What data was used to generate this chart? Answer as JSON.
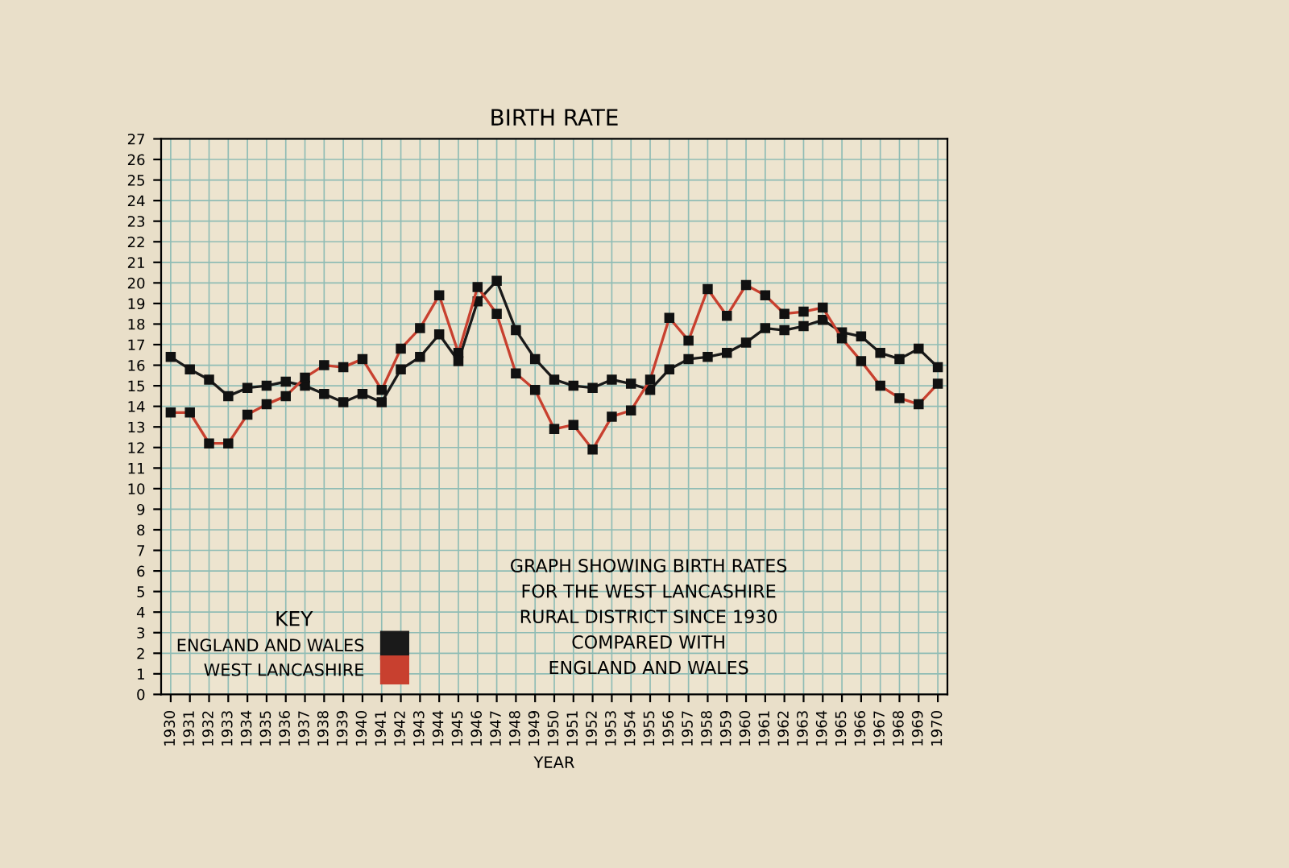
{
  "chart_data": {
    "type": "line",
    "title": "BIRTH RATE",
    "xlabel": "YEAR",
    "legend_title": "KEY",
    "categories": [
      "1930",
      "1931",
      "1932",
      "1933",
      "1934",
      "1935",
      "1936",
      "1937",
      "1938",
      "1939",
      "1940",
      "1941",
      "1942",
      "1943",
      "1944",
      "1945",
      "1946",
      "1947",
      "1948",
      "1949",
      "1950",
      "1951",
      "1952",
      "1953",
      "1954",
      "1955",
      "1956",
      "1957",
      "1958",
      "1959",
      "1960",
      "1961",
      "1962",
      "1963",
      "1964",
      "1965",
      "1966",
      "1967",
      "1968",
      "1969",
      "1970"
    ],
    "series": [
      {
        "name": "ENGLAND AND WALES",
        "color": "#1a1a1a",
        "values": [
          16.4,
          15.8,
          15.3,
          14.5,
          14.9,
          15.0,
          15.2,
          15.0,
          14.6,
          14.2,
          14.6,
          14.2,
          15.8,
          16.4,
          17.5,
          16.2,
          19.1,
          20.1,
          17.7,
          16.3,
          15.3,
          15.0,
          14.9,
          15.3,
          15.1,
          14.8,
          15.8,
          16.3,
          16.4,
          16.6,
          17.1,
          17.8,
          17.7,
          17.9,
          18.2,
          17.6,
          17.4,
          16.6,
          16.3,
          16.8,
          15.9
        ]
      },
      {
        "name": "WEST LANCASHIRE",
        "color": "#c8402f",
        "values": [
          13.7,
          13.7,
          12.2,
          12.2,
          13.6,
          14.1,
          14.5,
          15.4,
          16.0,
          15.9,
          16.3,
          14.8,
          16.8,
          17.8,
          19.4,
          16.6,
          19.8,
          18.5,
          15.6,
          14.8,
          12.9,
          13.1,
          11.9,
          13.5,
          13.8,
          15.3,
          18.3,
          17.2,
          19.7,
          18.4,
          19.9,
          19.4,
          18.5,
          18.6,
          18.8,
          17.3,
          16.2,
          15.0,
          14.4,
          14.1,
          15.1
        ]
      }
    ],
    "annotations": [
      "GRAPH SHOWING BIRTH RATES\nFOR THE WEST LANCASHIRE\nRURAL DISTRICT SINCE 1930\nCOMPARED WITH\nENGLAND AND WALES"
    ],
    "ylim": [
      0,
      27
    ],
    "yticks": [
      0,
      1,
      2,
      3,
      4,
      5,
      6,
      7,
      8,
      9,
      10,
      11,
      12,
      13,
      14,
      15,
      16,
      17,
      18,
      19,
      20,
      21,
      22,
      23,
      24,
      25,
      26,
      27
    ],
    "grid": true,
    "legend": "bottom left",
    "marker": "square",
    "line_style": "solid"
  }
}
